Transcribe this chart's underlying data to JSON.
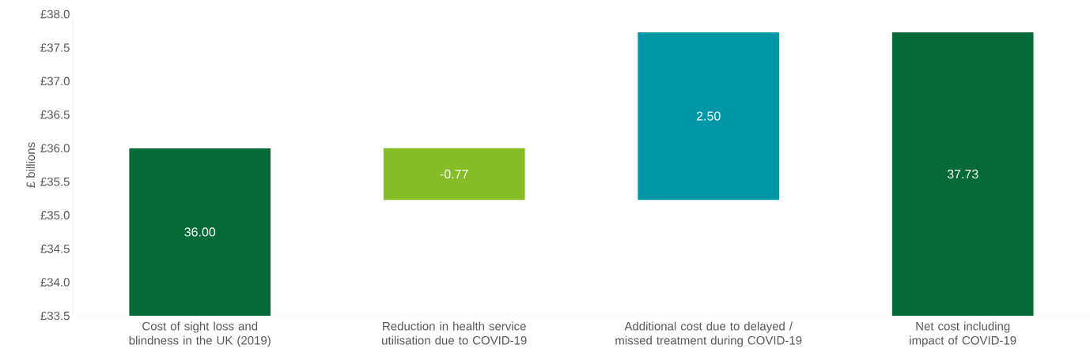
{
  "chart_data": {
    "type": "bar",
    "ylabel": "£ billions",
    "categories": [
      "Cost of sight loss and blindness in the UK (2019)",
      "Reduction in health service utilisation due to COVID-19",
      "Additional cost due to delayed / missed treatment during COVID-19",
      "Net cost including impact of COVID-19"
    ],
    "values": [
      36.0,
      -0.77,
      2.5,
      37.73
    ],
    "base": [
      null,
      36.0,
      35.23,
      null
    ],
    "colors": [
      "#056a37",
      "#86bc25",
      "#0097a7",
      "#056a37"
    ],
    "value_labels": [
      "36.00",
      "-0.77",
      "2.50",
      "37.73"
    ],
    "ylim": [
      33.5,
      38.0
    ],
    "yticks": [
      {
        "value": 33.5,
        "label": "£33.5"
      },
      {
        "value": 34.0,
        "label": "£34.0"
      },
      {
        "value": 34.5,
        "label": "£34.5"
      },
      {
        "value": 35.0,
        "label": "£35.0"
      },
      {
        "value": 35.5,
        "label": "£35.5"
      },
      {
        "value": 36.0,
        "label": "£36.0"
      },
      {
        "value": 36.5,
        "label": "£36.5"
      },
      {
        "value": 37.0,
        "label": "£37.0"
      },
      {
        "value": 37.5,
        "label": "£37.5"
      },
      {
        "value": 38.0,
        "label": "£38.0"
      }
    ],
    "grid": false
  }
}
